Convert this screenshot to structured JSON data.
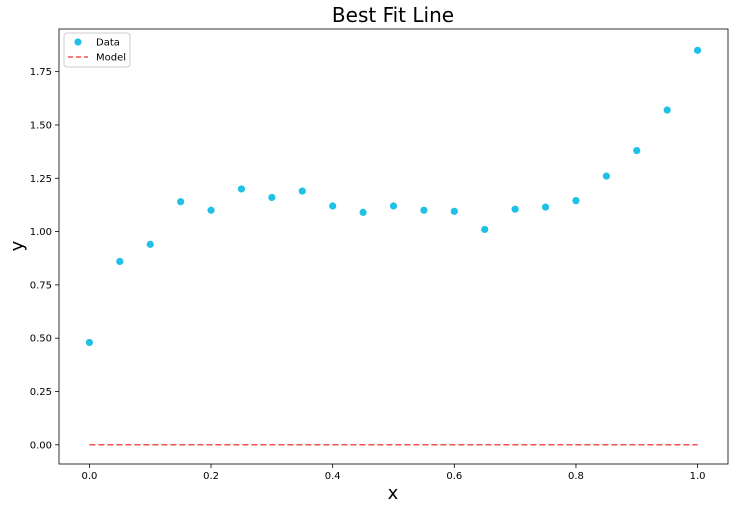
{
  "chart_data": {
    "type": "scatter",
    "title": "Best Fit Line",
    "xlabel": "x",
    "ylabel": "y",
    "xlim": [
      -0.05,
      1.05
    ],
    "ylim": [
      -0.09,
      1.95
    ],
    "xticks": [
      0.0,
      0.2,
      0.4,
      0.6,
      0.8,
      1.0
    ],
    "xtick_labels": [
      "0.0",
      "0.2",
      "0.4",
      "0.6",
      "0.8",
      "1.0"
    ],
    "yticks": [
      0.0,
      0.25,
      0.5,
      0.75,
      1.0,
      1.25,
      1.5,
      1.75
    ],
    "ytick_labels": [
      "0.00",
      "0.25",
      "0.50",
      "0.75",
      "1.00",
      "1.25",
      "1.50",
      "1.75"
    ],
    "grid": false,
    "legend_position": "top-left",
    "series": [
      {
        "name": "Data",
        "kind": "markers",
        "color": "#1fc1e6",
        "x": [
          0.0,
          0.05,
          0.1,
          0.15,
          0.2,
          0.25,
          0.3,
          0.35,
          0.4,
          0.45,
          0.5,
          0.55,
          0.6,
          0.65,
          0.7,
          0.75,
          0.8,
          0.85,
          0.9,
          0.95,
          1.0
        ],
        "y": [
          0.48,
          0.86,
          0.94,
          1.14,
          1.1,
          1.2,
          1.16,
          1.19,
          1.12,
          1.09,
          1.12,
          1.1,
          1.095,
          1.01,
          1.105,
          1.115,
          1.145,
          1.26,
          1.38,
          1.57,
          1.85
        ]
      },
      {
        "name": "Model",
        "kind": "dashed-line",
        "color": "#f0504f",
        "x": [
          0.0,
          1.0
        ],
        "y": [
          0.0,
          0.0
        ]
      }
    ]
  }
}
